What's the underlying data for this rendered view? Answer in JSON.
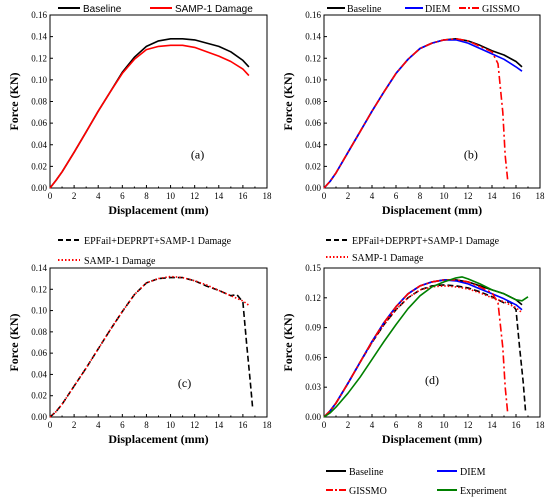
{
  "colors": {
    "baseline": "#000000",
    "samp1": "#ff0000",
    "diem": "#0000ff",
    "gissmo": "#ff0000",
    "epfail": "#000000",
    "experiment": "#008000"
  },
  "chart_data": [
    {
      "id": "a",
      "type": "line",
      "panel_label": "(a)",
      "xlabel": "Displacement (mm)",
      "ylabel": "Force (KN)",
      "xlim": [
        0,
        18
      ],
      "ylim": [
        0,
        0.16
      ],
      "xticks": [
        "0",
        "2",
        "4",
        "6",
        "8",
        "10",
        "12",
        "14",
        "16",
        "18"
      ],
      "yticks": [
        "0.00",
        "0.02",
        "0.04",
        "0.06",
        "0.08",
        "0.10",
        "0.12",
        "0.14",
        "0.16"
      ],
      "legend_position": "top",
      "series": [
        {
          "name": "Baseline",
          "color": "#000000",
          "dash": "solid",
          "x": [
            0,
            0.5,
            1,
            2,
            3,
            4,
            5,
            6,
            7,
            8,
            9,
            10,
            11,
            12,
            13,
            14,
            15,
            16,
            16.5
          ],
          "y": [
            0,
            0.007,
            0.015,
            0.033,
            0.052,
            0.071,
            0.089,
            0.107,
            0.121,
            0.131,
            0.136,
            0.138,
            0.138,
            0.137,
            0.134,
            0.131,
            0.126,
            0.118,
            0.112
          ]
        },
        {
          "name": "SAMP-1 Damage",
          "color": "#ff0000",
          "dash": "solid",
          "x": [
            0,
            0.5,
            1,
            2,
            3,
            4,
            5,
            6,
            7,
            8,
            9,
            10,
            11,
            12,
            13,
            14,
            15,
            16,
            16.5
          ],
          "y": [
            0,
            0.007,
            0.015,
            0.033,
            0.052,
            0.071,
            0.089,
            0.106,
            0.119,
            0.128,
            0.131,
            0.132,
            0.132,
            0.13,
            0.126,
            0.122,
            0.117,
            0.11,
            0.104
          ]
        }
      ]
    },
    {
      "id": "b",
      "type": "line",
      "panel_label": "(b)",
      "xlabel": "Displacement (mm)",
      "ylabel": "Force (KN)",
      "xlim": [
        0,
        18
      ],
      "ylim": [
        0,
        0.16
      ],
      "xticks": [
        "0",
        "2",
        "4",
        "6",
        "8",
        "10",
        "12",
        "14",
        "16",
        "18"
      ],
      "yticks": [
        "0.00",
        "0.02",
        "0.04",
        "0.06",
        "0.08",
        "0.10",
        "0.12",
        "0.14",
        "0.16"
      ],
      "legend_position": "top",
      "series": [
        {
          "name": "Baseline",
          "color": "#000000",
          "dash": "solid",
          "x": [
            0,
            0.5,
            1,
            2,
            3,
            4,
            5,
            6,
            7,
            8,
            9,
            10,
            11,
            12,
            13,
            14,
            15,
            16,
            16.5
          ],
          "y": [
            0,
            0.006,
            0.014,
            0.033,
            0.052,
            0.071,
            0.089,
            0.106,
            0.119,
            0.129,
            0.134,
            0.137,
            0.138,
            0.136,
            0.132,
            0.127,
            0.123,
            0.117,
            0.112
          ]
        },
        {
          "name": "DIEM",
          "color": "#0000ff",
          "dash": "solid",
          "x": [
            0,
            0.5,
            1,
            2,
            3,
            4,
            5,
            6,
            7,
            8,
            9,
            10,
            11,
            12,
            13,
            14,
            15,
            16,
            16.5
          ],
          "y": [
            0,
            0.006,
            0.014,
            0.033,
            0.052,
            0.071,
            0.089,
            0.106,
            0.119,
            0.129,
            0.134,
            0.137,
            0.137,
            0.134,
            0.129,
            0.124,
            0.119,
            0.112,
            0.108
          ]
        },
        {
          "name": "GISSMO",
          "color": "#ff0000",
          "dash": "dashdot",
          "x": [
            0,
            0.5,
            1,
            2,
            3,
            4,
            5,
            6,
            7,
            8,
            9,
            10,
            11,
            12,
            13,
            14,
            14.5,
            14.9,
            15.1,
            15.3
          ],
          "y": [
            0,
            0.006,
            0.014,
            0.033,
            0.052,
            0.071,
            0.089,
            0.106,
            0.119,
            0.129,
            0.134,
            0.137,
            0.138,
            0.136,
            0.131,
            0.126,
            0.115,
            0.07,
            0.03,
            0.008
          ]
        }
      ]
    },
    {
      "id": "c",
      "type": "line",
      "panel_label": "(c)",
      "xlabel": "Displacement (mm)",
      "ylabel": "Force (KN)",
      "xlim": [
        0,
        18
      ],
      "ylim": [
        0,
        0.14
      ],
      "xticks": [
        "0",
        "2",
        "4",
        "6",
        "8",
        "10",
        "12",
        "14",
        "16",
        "18"
      ],
      "yticks": [
        "0.00",
        "0.02",
        "0.04",
        "0.06",
        "0.08",
        "0.10",
        "0.12",
        "0.14"
      ],
      "legend_position": "top",
      "series": [
        {
          "name": "EPFail+DEPRPT+SAMP-1 Damage",
          "color": "#000000",
          "dash": "dashed",
          "x": [
            0,
            0.5,
            1,
            2,
            3,
            4,
            5,
            6,
            7,
            8,
            9,
            10,
            11,
            12,
            13,
            14,
            15,
            15.5,
            16,
            16.3,
            16.6,
            16.8
          ],
          "y": [
            0,
            0.005,
            0.012,
            0.029,
            0.046,
            0.064,
            0.082,
            0.099,
            0.115,
            0.126,
            0.13,
            0.131,
            0.131,
            0.128,
            0.123,
            0.119,
            0.114,
            0.115,
            0.108,
            0.07,
            0.035,
            0.01
          ]
        },
        {
          "name": "SAMP-1 Damage",
          "color": "#ff0000",
          "dash": "dotted",
          "x": [
            0,
            0.5,
            1,
            2,
            3,
            4,
            5,
            6,
            7,
            8,
            9,
            10,
            11,
            12,
            13,
            14,
            15,
            16,
            16.5
          ],
          "y": [
            0,
            0.005,
            0.012,
            0.029,
            0.046,
            0.064,
            0.082,
            0.099,
            0.115,
            0.126,
            0.13,
            0.132,
            0.131,
            0.128,
            0.124,
            0.119,
            0.114,
            0.109,
            0.105
          ]
        }
      ]
    },
    {
      "id": "d",
      "type": "line",
      "panel_label": "(d)",
      "xlabel": "Displacement (mm)",
      "ylabel": "Force (KN)",
      "xlim": [
        0,
        18
      ],
      "ylim": [
        0,
        0.15
      ],
      "xticks": [
        "0",
        "2",
        "4",
        "6",
        "8",
        "10",
        "12",
        "14",
        "16",
        "18"
      ],
      "yticks": [
        "0.00",
        "0.03",
        "0.06",
        "0.09",
        "0.12",
        "0.15"
      ],
      "legend_position": "top and bottom",
      "series": [
        {
          "name": "EPFail+DEPRPT+SAMP-1 Damage",
          "color": "#000000",
          "dash": "dashed",
          "x": [
            0,
            0.5,
            1,
            2,
            3,
            4,
            5,
            6,
            7,
            8,
            9,
            10,
            11,
            12,
            13,
            14,
            15,
            15.5,
            16,
            16.3,
            16.6,
            16.8
          ],
          "y": [
            0,
            0.006,
            0.014,
            0.034,
            0.055,
            0.075,
            0.093,
            0.108,
            0.12,
            0.128,
            0.132,
            0.133,
            0.132,
            0.13,
            0.126,
            0.121,
            0.115,
            0.116,
            0.108,
            0.07,
            0.035,
            0.005
          ]
        },
        {
          "name": "SAMP-1 Damage",
          "color": "#ff0000",
          "dash": "dotted",
          "x": [
            0,
            0.5,
            1,
            2,
            3,
            4,
            5,
            6,
            7,
            8,
            9,
            10,
            11,
            12,
            13,
            14,
            15,
            16,
            16.5
          ],
          "y": [
            0,
            0.006,
            0.014,
            0.034,
            0.055,
            0.075,
            0.093,
            0.108,
            0.12,
            0.128,
            0.131,
            0.132,
            0.131,
            0.129,
            0.125,
            0.12,
            0.116,
            0.11,
            0.105
          ]
        },
        {
          "name": "Baseline",
          "color": "#000000",
          "dash": "solid",
          "x": [
            0,
            0.5,
            1,
            2,
            3,
            4,
            5,
            6,
            7,
            8,
            9,
            10,
            11,
            12,
            13,
            14,
            15,
            16,
            16.5
          ],
          "y": [
            0,
            0.006,
            0.014,
            0.034,
            0.055,
            0.076,
            0.095,
            0.111,
            0.124,
            0.132,
            0.136,
            0.138,
            0.138,
            0.136,
            0.132,
            0.128,
            0.124,
            0.118,
            0.113
          ]
        },
        {
          "name": "DIEM",
          "color": "#0000ff",
          "dash": "solid",
          "x": [
            0,
            0.5,
            1,
            2,
            3,
            4,
            5,
            6,
            7,
            8,
            9,
            10,
            11,
            12,
            13,
            14,
            15,
            16,
            16.5
          ],
          "y": [
            0,
            0.006,
            0.014,
            0.034,
            0.055,
            0.076,
            0.095,
            0.111,
            0.124,
            0.132,
            0.136,
            0.138,
            0.137,
            0.134,
            0.129,
            0.124,
            0.119,
            0.113,
            0.108
          ]
        },
        {
          "name": "GISSMO",
          "color": "#ff0000",
          "dash": "dashdot",
          "x": [
            0,
            0.5,
            1,
            2,
            3,
            4,
            5,
            6,
            7,
            8,
            9,
            10,
            11,
            12,
            13,
            14,
            14.5,
            14.9,
            15.1,
            15.3
          ],
          "y": [
            0,
            0.006,
            0.014,
            0.034,
            0.055,
            0.076,
            0.095,
            0.111,
            0.124,
            0.132,
            0.136,
            0.138,
            0.138,
            0.136,
            0.131,
            0.125,
            0.115,
            0.07,
            0.03,
            0.005
          ]
        },
        {
          "name": "Experiment",
          "color": "#008000",
          "dash": "solid",
          "x": [
            0,
            0.5,
            1,
            2,
            3,
            4,
            5,
            6,
            7,
            8,
            9,
            10,
            11,
            11.5,
            12,
            13,
            14,
            15,
            16,
            16.5,
            17
          ],
          "y": [
            0,
            0.004,
            0.01,
            0.024,
            0.04,
            0.058,
            0.076,
            0.093,
            0.109,
            0.122,
            0.131,
            0.136,
            0.14,
            0.141,
            0.139,
            0.134,
            0.128,
            0.124,
            0.118,
            0.117,
            0.121
          ]
        }
      ]
    }
  ]
}
